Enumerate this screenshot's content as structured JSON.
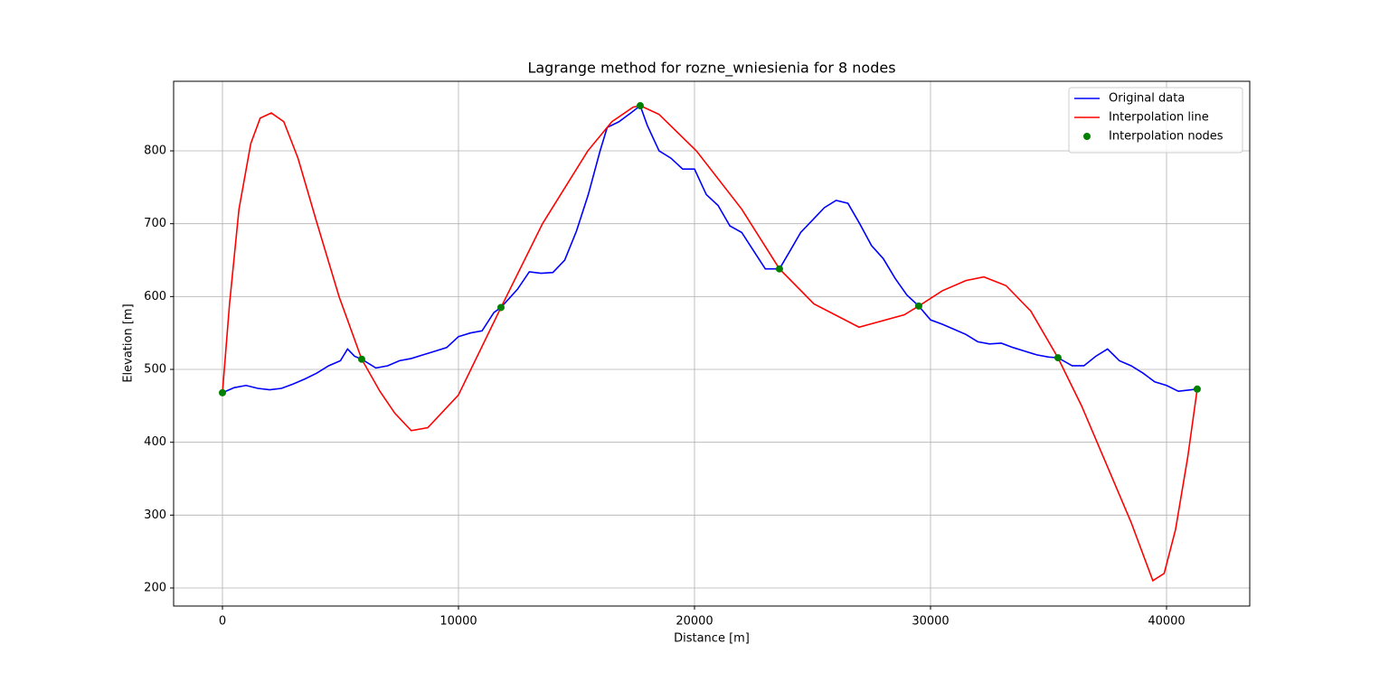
{
  "chart_data": {
    "type": "line",
    "title": "Lagrange method for rozne_wniesienia for 8 nodes",
    "xlabel": "Distance [m]",
    "ylabel": "Elevation [m]",
    "xlim": [
      -2069,
      43525
    ],
    "ylim": [
      175.2,
      895.5
    ],
    "xticks": [
      0,
      10000,
      20000,
      30000,
      40000
    ],
    "yticks": [
      200,
      300,
      400,
      500,
      600,
      700,
      800
    ],
    "grid": true,
    "legend": "upper right",
    "series": [
      {
        "name": "Original data",
        "type": "line",
        "color": "#0000ff",
        "x": [
          0,
          500,
          1000,
          1500,
          2000,
          2500,
          3000,
          3500,
          4000,
          4500,
          5000,
          5300,
          5600,
          5900,
          6500,
          7000,
          7500,
          8000,
          8500,
          9000,
          9500,
          10000,
          10500,
          11000,
          11500,
          11800,
          12500,
          13000,
          13500,
          14000,
          14500,
          15000,
          15500,
          16000,
          16300,
          16800,
          17300,
          17700,
          18000,
          18500,
          19000,
          19500,
          20000,
          20500,
          21000,
          21500,
          22000,
          22500,
          23000,
          23600,
          24000,
          24500,
          25000,
          25500,
          26000,
          26500,
          27000,
          27500,
          28000,
          28500,
          29000,
          29500,
          30000,
          30500,
          31000,
          31500,
          32000,
          32500,
          33000,
          33500,
          34000,
          34500,
          35000,
          35400,
          36000,
          36500,
          37000,
          37500,
          38000,
          38500,
          39000,
          39500,
          40000,
          40500,
          41300
        ],
        "values": [
          468,
          475,
          478,
          474,
          472,
          474,
          480,
          487,
          495,
          505,
          512,
          528,
          518,
          514,
          502,
          505,
          512,
          515,
          520,
          525,
          530,
          545,
          550,
          553,
          578,
          585,
          610,
          634,
          632,
          633,
          650,
          690,
          740,
          800,
          832,
          840,
          852,
          862,
          835,
          800,
          790,
          775,
          775,
          740,
          725,
          697,
          688,
          663,
          638,
          638,
          660,
          688,
          705,
          722,
          732,
          728,
          700,
          670,
          652,
          625,
          602,
          587,
          568,
          562,
          555,
          548,
          538,
          535,
          536,
          530,
          525,
          520,
          517,
          516,
          505,
          505,
          518,
          528,
          512,
          505,
          495,
          483,
          478,
          470,
          473
        ]
      },
      {
        "name": "Interpolation line",
        "type": "line",
        "color": "#ff0000",
        "x": [
          0,
          300,
          700,
          1200,
          1600,
          2070,
          2600,
          3200,
          3985,
          4940,
          5900,
          6670,
          7300,
          8000,
          8700,
          10000,
          11800,
          13560,
          15480,
          16500,
          17400,
          17700,
          18500,
          20080,
          22000,
          23600,
          25060,
          26970,
          28890,
          29500,
          30500,
          31500,
          32260,
          33200,
          34250,
          35400,
          36400,
          37320,
          38500,
          39420,
          39900,
          40380,
          40900,
          41300
        ],
        "values": [
          468,
          590,
          720,
          810,
          845,
          852,
          840,
          790,
          703,
          600,
          514,
          470,
          440,
          416,
          420,
          465,
          585,
          700,
          800,
          840,
          860,
          862,
          850,
          800,
          720,
          638,
          590,
          558,
          575,
          587,
          608,
          622,
          627,
          615,
          580,
          516,
          450,
          380,
          290,
          210,
          220,
          280,
          380,
          473
        ]
      },
      {
        "name": "Interpolation nodes",
        "type": "scatter",
        "color": "#008000",
        "x": [
          0,
          5900,
          11800,
          17700,
          23600,
          29500,
          35400,
          41300
        ],
        "values": [
          468,
          514,
          585,
          862,
          638,
          587,
          516,
          473
        ]
      }
    ]
  }
}
